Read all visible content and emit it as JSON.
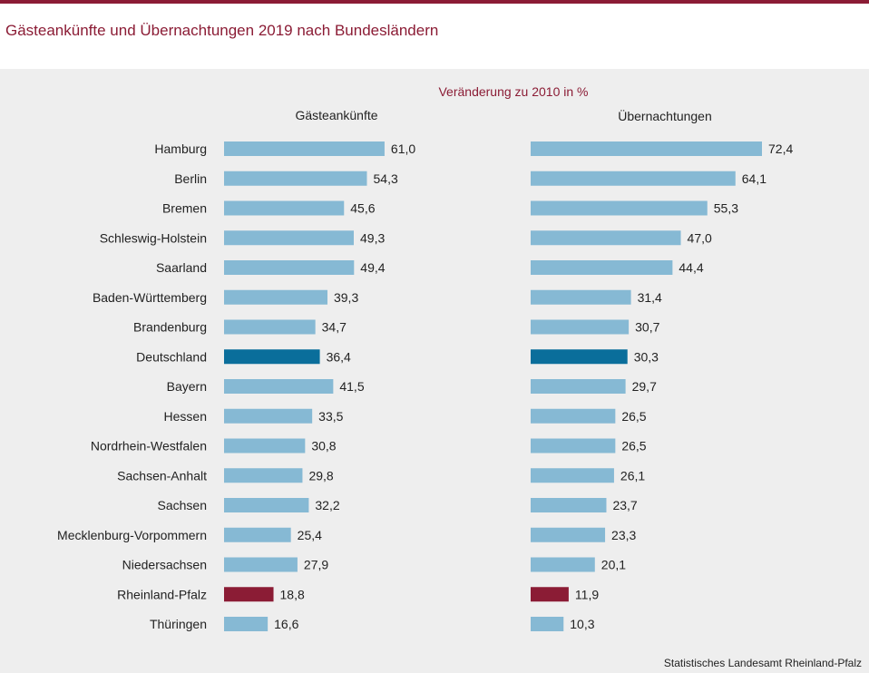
{
  "title": "Gästeankünfte und Übernachtungen 2019 nach Bundesländern",
  "source": "Statistisches Landesamt Rheinland-Pfalz",
  "colors": {
    "bar": "#86b9d4",
    "highlight_germany": "#0a6e9b",
    "highlight_rlp": "#8b1c35",
    "accent": "#8b1c35",
    "text": "#222222"
  },
  "chart_data": {
    "type": "bar",
    "orientation": "horizontal",
    "subtitle": "Veränderung zu 2010 in %",
    "categories": [
      "Hamburg",
      "Berlin",
      "Bremen",
      "Schleswig-Holstein",
      "Saarland",
      "Baden-Württemberg",
      "Brandenburg",
      "Deutschland",
      "Bayern",
      "Hessen",
      "Nordrhein-Westfalen",
      "Sachsen-Anhalt",
      "Sachsen",
      "Mecklenburg-Vorpommern",
      "Niedersachsen",
      "Rheinland-Pfalz",
      "Thüringen"
    ],
    "series": [
      {
        "name": "Gästeankünfte",
        "values": [
          61.0,
          54.3,
          45.6,
          49.3,
          49.4,
          39.3,
          34.7,
          36.4,
          41.5,
          33.5,
          30.8,
          29.8,
          32.2,
          25.4,
          27.9,
          18.8,
          16.6
        ],
        "labels": [
          "61,0",
          "54,3",
          "45,6",
          "49,3",
          "49,4",
          "39,3",
          "34,7",
          "36,4",
          "41,5",
          "33,5",
          "30,8",
          "29,8",
          "32,2",
          "25,4",
          "27,9",
          "18,8",
          "16,6"
        ]
      },
      {
        "name": "Übernachtungen",
        "values": [
          72.4,
          64.1,
          55.3,
          47.0,
          44.4,
          31.4,
          30.7,
          30.3,
          29.7,
          26.5,
          26.5,
          26.1,
          23.7,
          23.3,
          20.1,
          11.9,
          10.3
        ],
        "labels": [
          "72,4",
          "64,1",
          "55,3",
          "47,0",
          "44,4",
          "31,4",
          "30,7",
          "30,3",
          "29,7",
          "26,5",
          "26,5",
          "26,1",
          "23,7",
          "23,3",
          "20,1",
          "11,9",
          "10,3"
        ]
      }
    ],
    "highlight": {
      "Deutschland": "germany",
      "Rheinland-Pfalz": "rlp"
    },
    "xlim": [
      0,
      72.4
    ],
    "grid": false,
    "legend": "none"
  }
}
